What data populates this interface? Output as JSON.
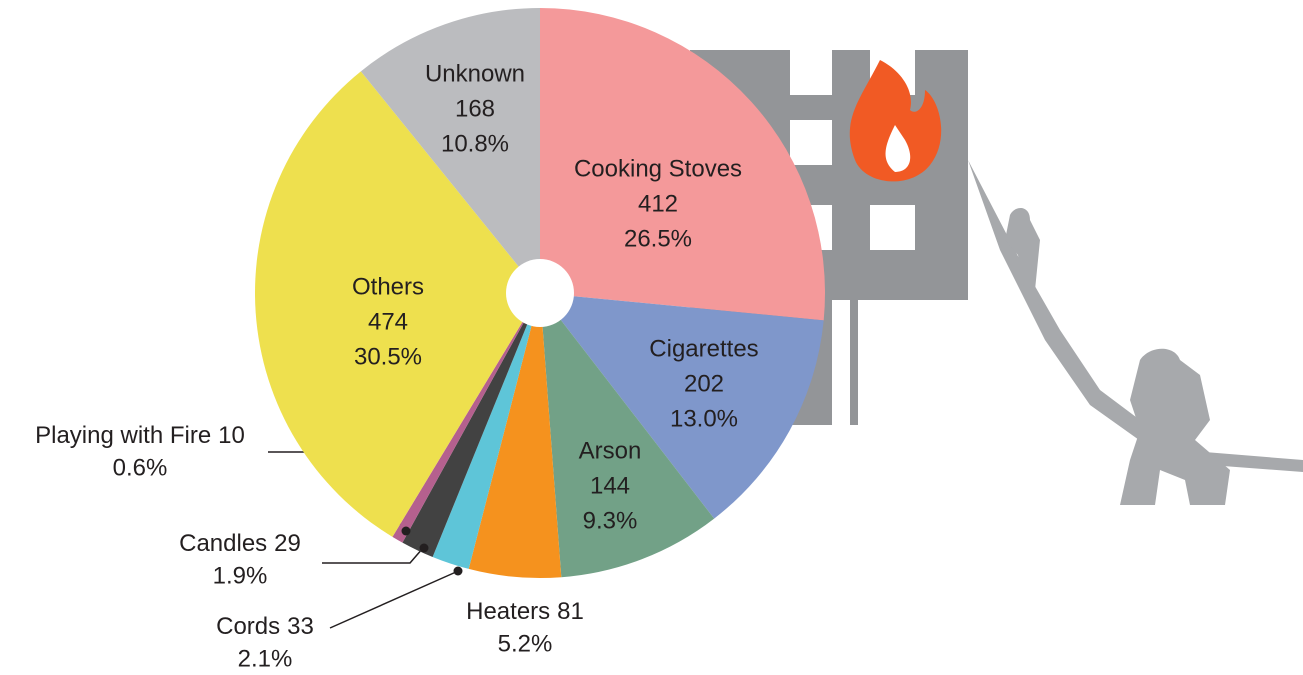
{
  "chart_data": {
    "type": "pie",
    "categories": [
      "Cooking Stoves",
      "Cigarettes",
      "Arson",
      "Heaters",
      "Cords",
      "Candles",
      "Playing with Fire",
      "Others",
      "Unknown"
    ],
    "values": [
      412,
      202,
      144,
      81,
      33,
      29,
      10,
      474,
      168
    ],
    "value_labels": [
      "26.5%",
      "13.0%",
      "9.3%",
      "5.2%",
      "2.1%",
      "1.9%",
      "0.6%",
      "30.5%",
      "10.8%"
    ],
    "colors": [
      "#f4999a",
      "#7f97cb",
      "#72a187",
      "#f5921e",
      "#5ec5d8",
      "#424242",
      "#b5608e",
      "#eee04e",
      "#bbbcbf"
    ]
  }
}
